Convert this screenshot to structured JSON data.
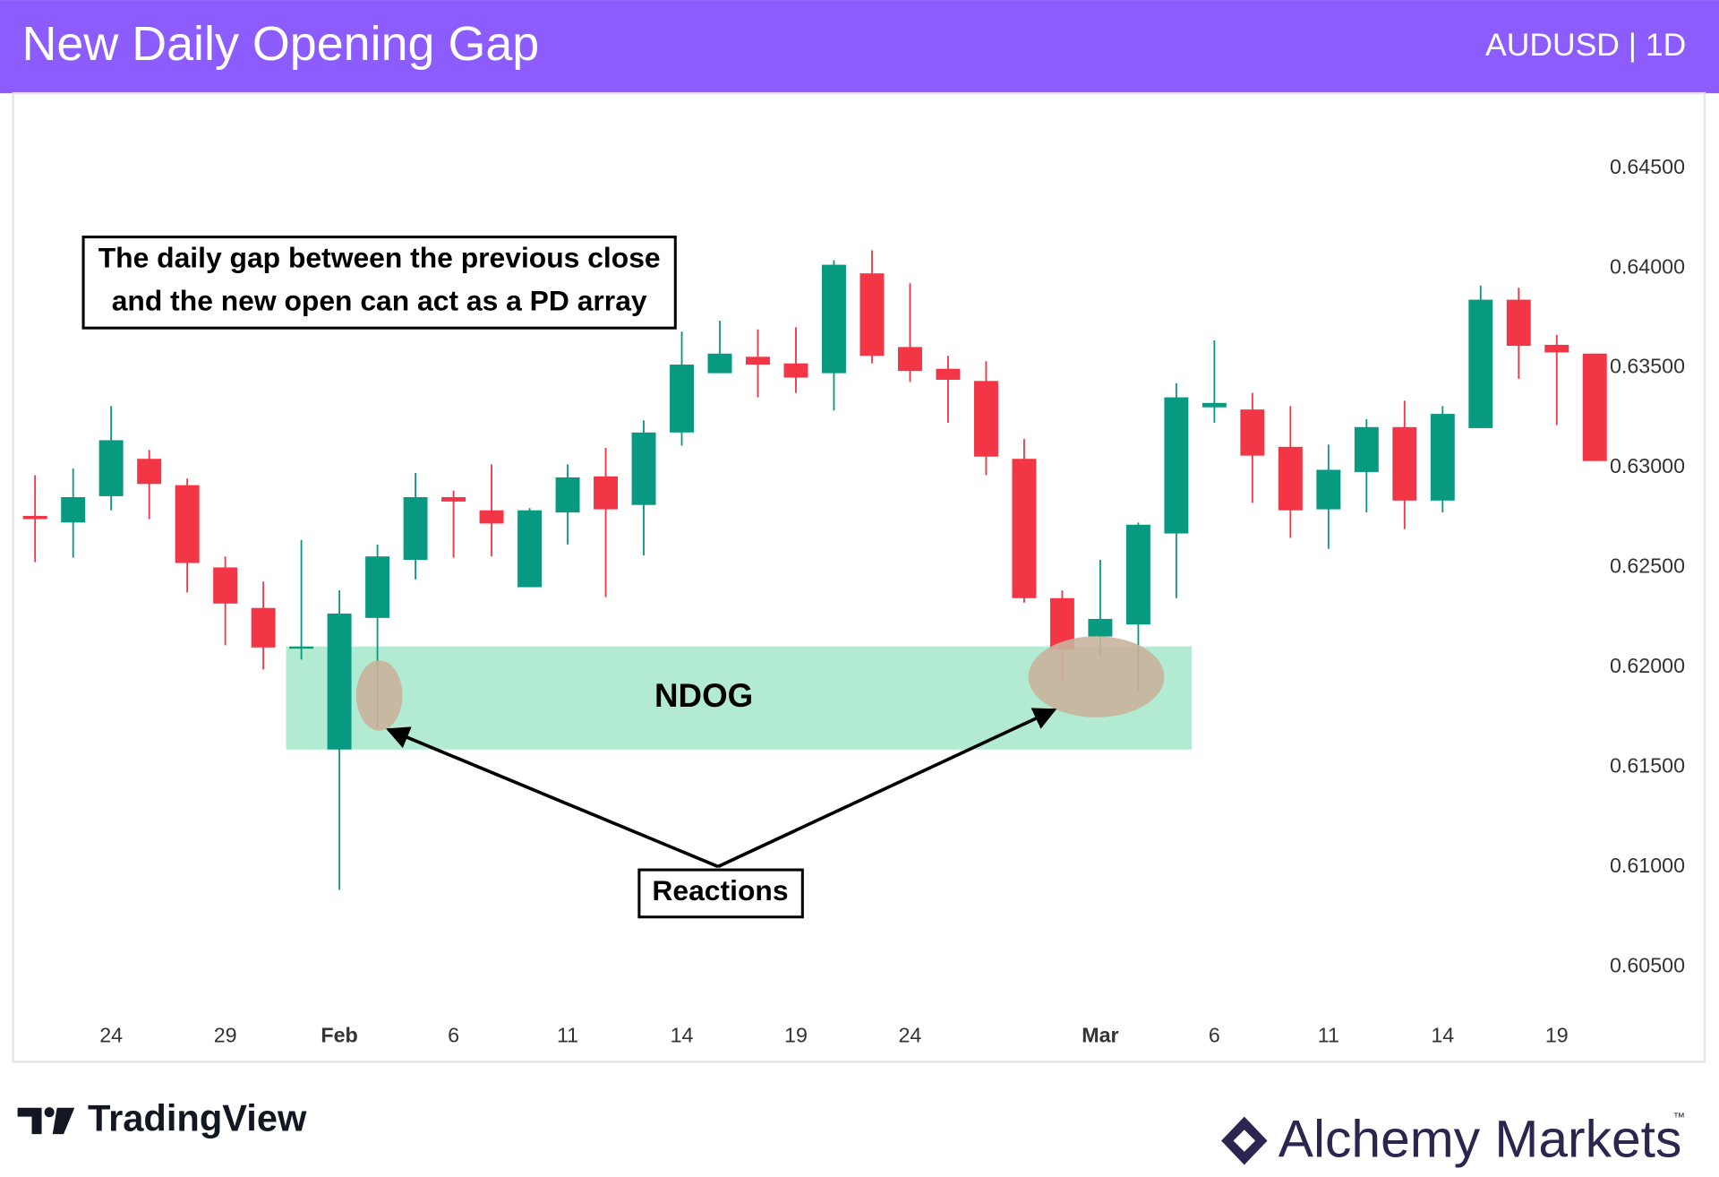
{
  "header": {
    "title": "New Daily Opening Gap",
    "symbol": "AUDUSD | 1D"
  },
  "chart_data": {
    "type": "candlestick",
    "categories": [
      null,
      null,
      "24",
      null,
      null,
      "29",
      null,
      null,
      "Feb",
      null,
      null,
      "6",
      null,
      null,
      "11",
      null,
      null,
      "14",
      null,
      null,
      "19",
      null,
      null,
      "24",
      null,
      null,
      null,
      null,
      "Mar",
      null,
      null,
      "6",
      null,
      null,
      "11",
      null,
      null,
      "14",
      null,
      null,
      "19",
      null
    ],
    "open": [
      0.62758,
      0.62725,
      0.62857,
      0.63044,
      0.62912,
      0.625,
      0.62297,
      0.62104,
      0.61588,
      0.62247,
      0.62538,
      0.62852,
      0.62786,
      0.62401,
      0.62775,
      0.62956,
      0.62813,
      0.63176,
      0.63473,
      0.63555,
      0.63522,
      0.63473,
      0.63973,
      0.63604,
      0.63495,
      0.63434,
      0.63044,
      0.62346,
      0.62154,
      0.62214,
      0.6267,
      0.63302,
      0.63291,
      0.63104,
      0.62791,
      0.62978,
      0.63203,
      0.62835,
      0.63198,
      0.63841,
      0.63615,
      0.63571
    ],
    "high": [
      0.62962,
      0.62995,
      0.63308,
      0.63088,
      0.62945,
      0.62555,
      0.62429,
      0.62637,
      0.62385,
      0.62615,
      0.62973,
      0.62885,
      0.63016,
      0.62797,
      0.63016,
      0.63099,
      0.63236,
      0.63681,
      0.63736,
      0.63692,
      0.63703,
      0.64038,
      0.64088,
      0.63923,
      0.6356,
      0.63533,
      0.63143,
      0.62385,
      0.62538,
      0.62725,
      0.63423,
      0.63637,
      0.63374,
      0.63308,
      0.63115,
      0.63242,
      0.63335,
      0.63308,
      0.63912,
      0.63901,
      0.63665,
      0.63571
    ],
    "low": [
      0.62527,
      0.62549,
      0.62786,
      0.62742,
      0.62374,
      0.6211,
      0.61989,
      0.62038,
      0.60885,
      0.61698,
      0.6244,
      0.62549,
      0.62555,
      0.62401,
      0.62615,
      0.62352,
      0.6256,
      0.6311,
      0.63473,
      0.63352,
      0.63374,
      0.63286,
      0.63522,
      0.63429,
      0.63225,
      0.62962,
      0.62324,
      0.61934,
      0.62049,
      0.61879,
      0.62346,
      0.63225,
      0.62824,
      0.62648,
      0.62593,
      0.62775,
      0.62692,
      0.62775,
      0.63198,
      0.63445,
      0.63214,
      0.63033
    ],
    "close": [
      0.62742,
      0.62852,
      0.63137,
      0.62918,
      0.62522,
      0.62319,
      0.62099,
      0.62104,
      0.62269,
      0.62555,
      0.62852,
      0.6283,
      0.6272,
      0.62786,
      0.62951,
      0.62791,
      0.63176,
      0.63516,
      0.63571,
      0.63516,
      0.63451,
      0.64016,
      0.6356,
      0.63484,
      0.6344,
      0.63055,
      0.62346,
      0.62088,
      0.62242,
      0.62714,
      0.63352,
      0.63324,
      0.6306,
      0.62786,
      0.62989,
      0.63203,
      0.62835,
      0.63269,
      0.63841,
      0.6361,
      0.63577,
      0.63033
    ],
    "up_color": "#089981",
    "down_color": "#f23645",
    "ylim": [
      0.6026,
      0.6482
    ],
    "yticks": [
      {
        "value": 0.605,
        "label": "0.60500"
      },
      {
        "value": 0.61,
        "label": "0.61000"
      },
      {
        "value": 0.615,
        "label": "0.61500"
      },
      {
        "value": 0.62,
        "label": "0.62000"
      },
      {
        "value": 0.625,
        "label": "0.62500"
      },
      {
        "value": 0.63,
        "label": "0.63000"
      },
      {
        "value": 0.635,
        "label": "0.63500"
      },
      {
        "value": 0.64,
        "label": "0.64000"
      },
      {
        "value": 0.645,
        "label": "0.64500"
      }
    ],
    "zone": {
      "label": "NDOG",
      "low": 0.61588,
      "high": 0.62104,
      "color": "#b2ebd2"
    },
    "annotations": {
      "note": [
        "The daily gap between the previous close",
        "and the new open can act as a PD array"
      ],
      "reactions": "Reactions"
    }
  },
  "footer": {
    "left_logo": "TradingView",
    "right_logo": "Alchemy Markets",
    "trademark": "™"
  }
}
